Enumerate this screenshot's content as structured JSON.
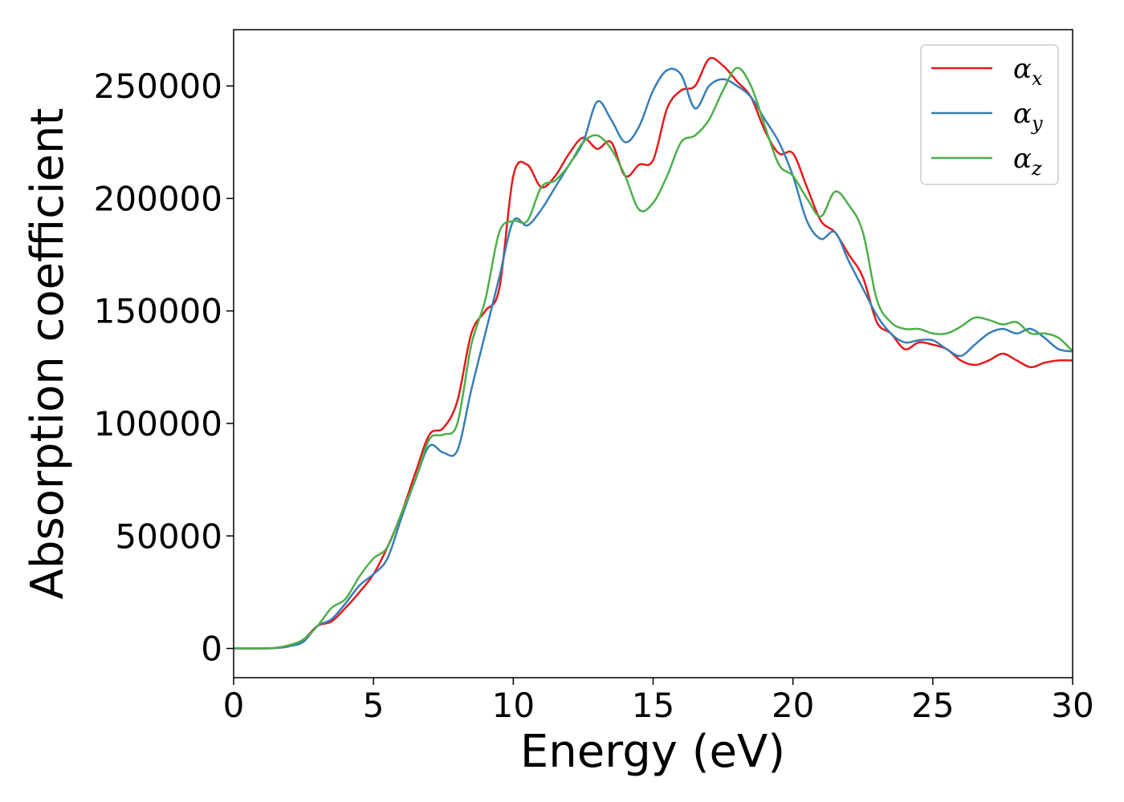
{
  "chart_data": {
    "type": "line",
    "title": "",
    "xlabel": "Energy (eV)",
    "ylabel": "Absorption coefficient",
    "xlim": [
      0,
      30
    ],
    "ylim": [
      -13000,
      275000
    ],
    "xticks": [
      0,
      5,
      10,
      15,
      20,
      25,
      30
    ],
    "yticks": [
      0,
      50000,
      100000,
      150000,
      200000,
      250000
    ],
    "xtick_labels": [
      "0",
      "5",
      "10",
      "15",
      "20",
      "25",
      "30"
    ],
    "ytick_labels": [
      "0",
      "50000",
      "100000",
      "150000",
      "200000",
      "250000"
    ],
    "grid": false,
    "legend_position": "top-right",
    "x": [
      0,
      0.5,
      1,
      1.5,
      2,
      2.5,
      3,
      3.5,
      4,
      4.5,
      5,
      5.5,
      6,
      6.5,
      7,
      7.5,
      8,
      8.5,
      9,
      9.5,
      10,
      10.5,
      11,
      11.5,
      12,
      12.5,
      13,
      13.5,
      14,
      14.5,
      15,
      15.5,
      16,
      16.5,
      17,
      17.5,
      18,
      18.5,
      19,
      19.5,
      20,
      20.5,
      21,
      21.5,
      22,
      22.5,
      23,
      23.5,
      24,
      24.5,
      25,
      25.5,
      26,
      26.5,
      27,
      27.5,
      28,
      28.5,
      29,
      29.5,
      30
    ],
    "series": [
      {
        "name": "α",
        "subscript": "x",
        "color": "#e41a1c",
        "values": [
          0,
          0,
          0,
          200,
          1000,
          4000,
          10000,
          12000,
          18000,
          25000,
          33000,
          45000,
          60000,
          78000,
          95000,
          98000,
          110000,
          140000,
          150000,
          160000,
          210000,
          215000,
          205000,
          210000,
          220000,
          227000,
          222000,
          225000,
          210000,
          215000,
          217000,
          240000,
          248000,
          250000,
          262000,
          259000,
          252000,
          245000,
          230000,
          220000,
          220000,
          205000,
          190000,
          185000,
          175000,
          165000,
          145000,
          140000,
          133000,
          136000,
          135000,
          133000,
          128000,
          126000,
          128000,
          131000,
          128000,
          125000,
          127000,
          128000,
          128000
        ]
      },
      {
        "name": "α",
        "subscript": "y",
        "color": "#377eb8",
        "values": [
          0,
          0,
          0,
          200,
          1000,
          3000,
          10000,
          13000,
          20000,
          28000,
          33000,
          40000,
          58000,
          75000,
          90000,
          87000,
          88000,
          115000,
          140000,
          165000,
          190000,
          188000,
          195000,
          205000,
          215000,
          225000,
          243000,
          235000,
          225000,
          232000,
          248000,
          257000,
          255000,
          240000,
          250000,
          253000,
          250000,
          245000,
          235000,
          225000,
          210000,
          190000,
          182000,
          185000,
          172000,
          160000,
          148000,
          140000,
          136000,
          137000,
          137000,
          133000,
          130000,
          135000,
          140000,
          142000,
          140000,
          142000,
          138000,
          133000,
          132000
        ]
      },
      {
        "name": "α",
        "subscript": "z",
        "color": "#4daf4a",
        "values": [
          0,
          0,
          0,
          300,
          1500,
          4000,
          10000,
          18000,
          22000,
          32000,
          40000,
          45000,
          60000,
          75000,
          93000,
          95000,
          100000,
          135000,
          155000,
          185000,
          190000,
          190000,
          205000,
          208000,
          215000,
          225000,
          228000,
          222000,
          210000,
          195000,
          198000,
          210000,
          225000,
          228000,
          235000,
          248000,
          258000,
          250000,
          232000,
          215000,
          210000,
          200000,
          192000,
          203000,
          197000,
          185000,
          155000,
          145000,
          142000,
          142000,
          140000,
          140000,
          143000,
          147000,
          146000,
          144000,
          145000,
          140000,
          140000,
          138000,
          132000
        ]
      }
    ]
  }
}
